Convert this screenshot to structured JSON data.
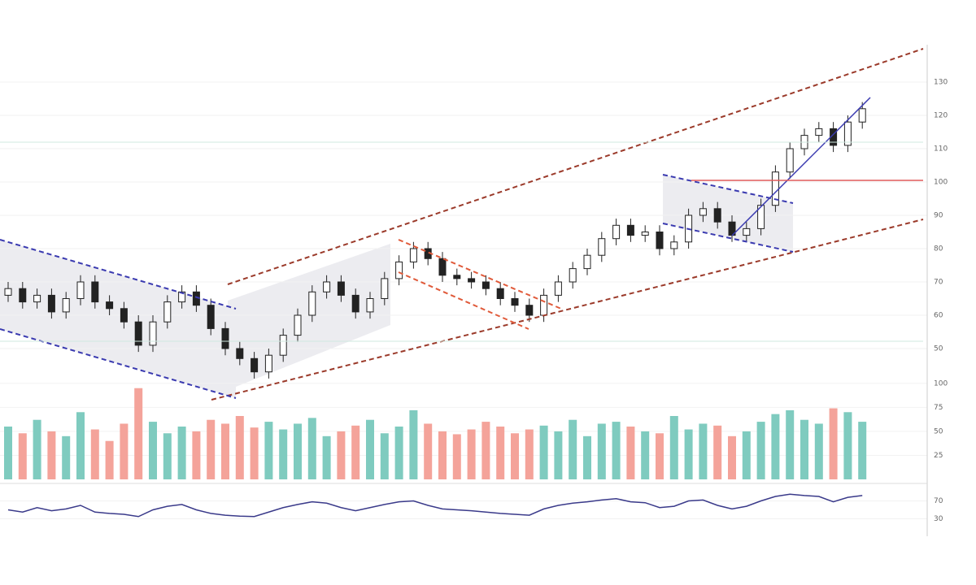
{
  "chart_data": {
    "type": "candlestick",
    "up_color": "#26a69a",
    "down_color": "#222222",
    "volume_up_color": "#7fcbbf",
    "volume_down_color": "#f4a39a",
    "indicator_color": "#3a3a8a",
    "open": [
      66,
      68,
      64,
      66,
      61,
      65,
      70,
      64,
      62,
      58,
      51,
      58,
      64,
      67,
      63,
      56,
      50,
      47,
      43,
      48,
      54,
      60,
      67,
      70,
      66,
      61,
      65,
      71,
      76,
      80,
      77,
      72,
      71,
      70,
      68,
      65,
      63,
      60,
      66,
      70,
      74,
      78,
      83,
      87,
      84,
      85,
      80,
      82,
      90,
      92,
      88,
      84,
      86,
      93,
      103,
      110,
      114,
      116,
      111,
      118
    ],
    "high": [
      70,
      70,
      68,
      68,
      67,
      72,
      72,
      66,
      64,
      60,
      60,
      66,
      69,
      69,
      65,
      58,
      52,
      49,
      50,
      56,
      62,
      69,
      72,
      72,
      68,
      67,
      73,
      78,
      82,
      82,
      79,
      74,
      73,
      72,
      70,
      67,
      65,
      68,
      72,
      76,
      80,
      85,
      89,
      89,
      87,
      87,
      84,
      92,
      94,
      94,
      90,
      88,
      95,
      105,
      112,
      116,
      118,
      118,
      120,
      124
    ],
    "low": [
      64,
      62,
      62,
      59,
      59,
      63,
      62,
      60,
      56,
      49,
      49,
      56,
      62,
      61,
      54,
      48,
      45,
      41,
      41,
      46,
      52,
      58,
      65,
      64,
      59,
      59,
      63,
      69,
      74,
      75,
      70,
      69,
      68,
      66,
      63,
      61,
      58,
      58,
      64,
      68,
      72,
      76,
      81,
      82,
      82,
      78,
      78,
      80,
      88,
      86,
      82,
      82,
      84,
      91,
      101,
      108,
      112,
      109,
      109,
      116
    ],
    "close": [
      68,
      64,
      66,
      61,
      65,
      70,
      64,
      62,
      58,
      51,
      58,
      64,
      67,
      63,
      56,
      50,
      47,
      43,
      48,
      54,
      60,
      67,
      70,
      66,
      61,
      65,
      71,
      76,
      80,
      77,
      72,
      71,
      70,
      68,
      65,
      63,
      60,
      66,
      70,
      74,
      78,
      83,
      87,
      84,
      85,
      80,
      82,
      90,
      92,
      88,
      84,
      86,
      93,
      103,
      110,
      114,
      116,
      111,
      118,
      122
    ],
    "ylim": [
      40,
      140
    ],
    "yticks": [
      50,
      60,
      70,
      80,
      90,
      100,
      110,
      120,
      130
    ],
    "volume": [
      55,
      48,
      62,
      50,
      45,
      70,
      52,
      40,
      58,
      95,
      60,
      48,
      55,
      50,
      62,
      58,
      66,
      54,
      60,
      52,
      58,
      64,
      45,
      50,
      56,
      62,
      48,
      55,
      72,
      58,
      50,
      47,
      52,
      60,
      55,
      48,
      52,
      56,
      50,
      62,
      45,
      58,
      60,
      55,
      50,
      48,
      66,
      52,
      58,
      56,
      45,
      50,
      60,
      68,
      72,
      62,
      58,
      74,
      70,
      60
    ],
    "volume_ylim": [
      0,
      110
    ],
    "volume_yticks": [
      25,
      50,
      75,
      100
    ],
    "indicator": [
      50,
      45,
      55,
      48,
      52,
      60,
      45,
      42,
      40,
      35,
      50,
      58,
      62,
      50,
      42,
      38,
      36,
      35,
      45,
      55,
      62,
      68,
      65,
      55,
      48,
      55,
      62,
      68,
      70,
      60,
      52,
      50,
      48,
      45,
      42,
      40,
      38,
      52,
      60,
      65,
      68,
      72,
      75,
      68,
      66,
      55,
      58,
      70,
      72,
      60,
      52,
      58,
      70,
      80,
      85,
      82,
      80,
      68,
      78,
      82
    ],
    "indicator_ylim": [
      0,
      100
    ],
    "indicator_yticks": [
      30,
      70
    ]
  }
}
